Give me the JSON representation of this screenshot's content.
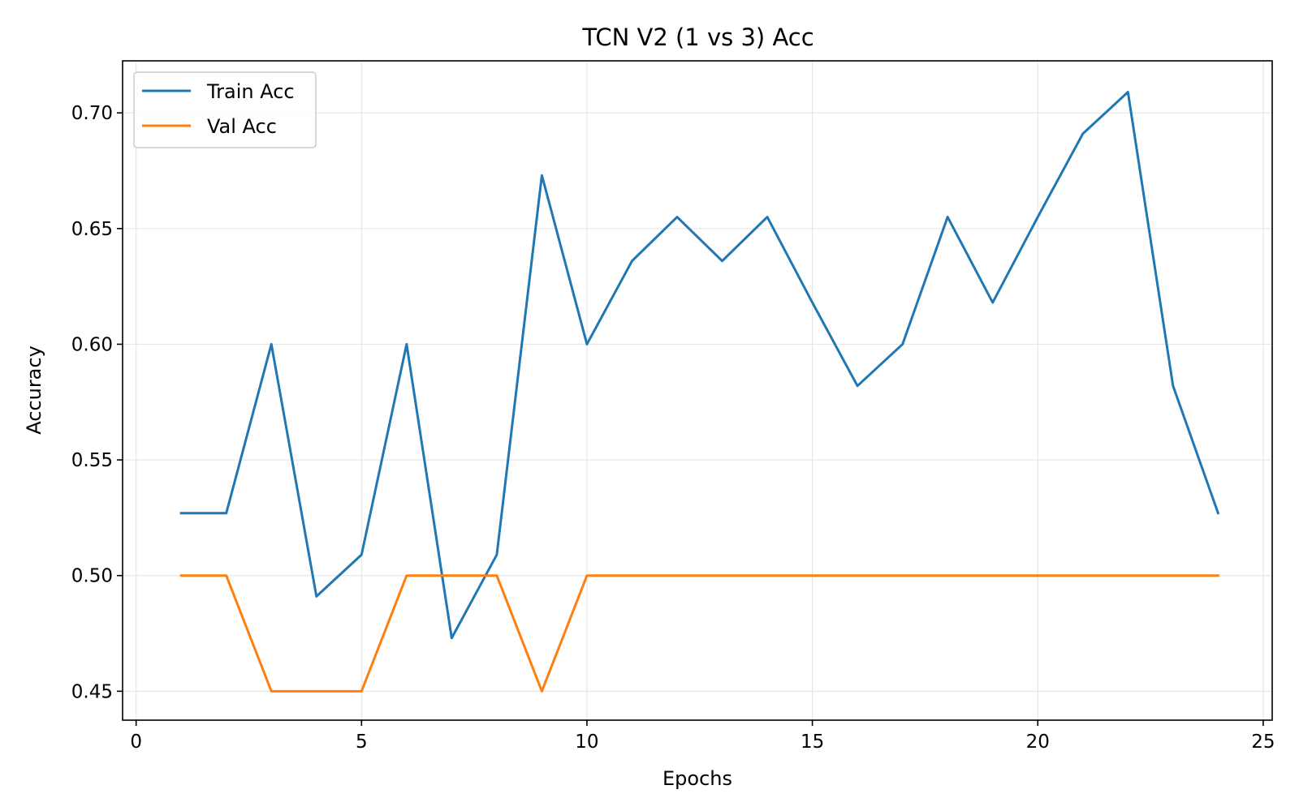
{
  "chart_data": {
    "type": "line",
    "title": "TCN V2 (1 vs 3) Acc",
    "xlabel": "Epochs",
    "ylabel": "Accuracy",
    "xlim": [
      -0.3,
      25.2
    ],
    "ylim": [
      0.4375,
      0.7225
    ],
    "xticks": [
      0,
      5,
      10,
      15,
      20,
      25
    ],
    "xtick_labels": [
      "0",
      "5",
      "10",
      "15",
      "20",
      "25"
    ],
    "yticks": [
      0.45,
      0.5,
      0.55,
      0.6,
      0.65,
      0.7
    ],
    "ytick_labels": [
      "0.45",
      "0.50",
      "0.55",
      "0.60",
      "0.65",
      "0.70"
    ],
    "grid": true,
    "legend_position": "upper left",
    "x": [
      1,
      2,
      3,
      4,
      5,
      6,
      7,
      8,
      9,
      10,
      11,
      12,
      13,
      14,
      15,
      16,
      17,
      18,
      19,
      20,
      21,
      22,
      23,
      24
    ],
    "series": [
      {
        "name": "Train Acc",
        "color": "#1f77b4",
        "values": [
          0.527,
          0.527,
          0.6,
          0.491,
          0.509,
          0.6,
          0.473,
          0.509,
          0.673,
          0.6,
          0.636,
          0.655,
          0.636,
          0.655,
          0.618,
          0.582,
          0.6,
          0.655,
          0.618,
          0.655,
          0.691,
          0.709,
          0.582,
          0.527
        ]
      },
      {
        "name": "Val Acc",
        "color": "#ff7f0e",
        "values": [
          0.5,
          0.5,
          0.45,
          0.45,
          0.45,
          0.5,
          0.5,
          0.5,
          0.45,
          0.5,
          0.5,
          0.5,
          0.5,
          0.5,
          0.5,
          0.5,
          0.5,
          0.5,
          0.5,
          0.5,
          0.5,
          0.5,
          0.5,
          0.5
        ]
      }
    ]
  }
}
